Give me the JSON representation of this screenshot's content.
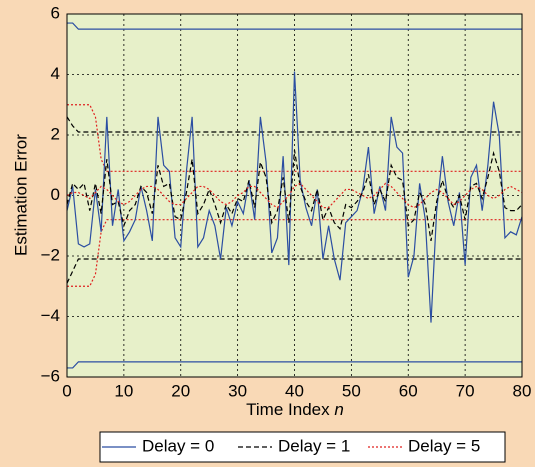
{
  "chart_data": {
    "type": "line",
    "xlabel": "Time Index",
    "xlabel_var": "n",
    "ylabel": "Estimation Error",
    "xlim": [
      0,
      80
    ],
    "ylim": [
      -6,
      6
    ],
    "xticks": [
      0,
      10,
      20,
      30,
      40,
      50,
      60,
      70,
      80
    ],
    "yticks": [
      {
        "value": -6,
        "label": "−6"
      },
      {
        "value": -4,
        "label": "−4"
      },
      {
        "value": -2,
        "label": "−2"
      },
      0,
      2,
      4,
      6
    ],
    "grid": true,
    "legend": "bottom",
    "x": [
      0,
      1,
      2,
      3,
      4,
      5,
      6,
      7,
      8,
      9,
      10,
      11,
      12,
      13,
      14,
      15,
      16,
      17,
      18,
      19,
      20,
      21,
      22,
      23,
      24,
      25,
      26,
      27,
      28,
      29,
      30,
      31,
      32,
      33,
      34,
      35,
      36,
      37,
      38,
      39,
      40,
      41,
      42,
      43,
      44,
      45,
      46,
      47,
      48,
      49,
      50,
      51,
      52,
      53,
      54,
      55,
      56,
      57,
      58,
      59,
      60,
      61,
      62,
      63,
      64,
      65,
      66,
      67,
      68,
      69,
      70,
      71,
      72,
      73,
      74,
      75,
      76,
      77,
      78,
      79,
      80
    ],
    "series": [
      {
        "name": "Delay = 0",
        "color": "#2b4ea2",
        "dash": "none",
        "values": [
          -0.5,
          0.3,
          -1.6,
          -1.7,
          -1.6,
          0.2,
          -1.2,
          2.6,
          -1.0,
          0.2,
          -1.5,
          -1.2,
          -0.8,
          0.3,
          -0.5,
          -1.5,
          2.6,
          1.0,
          0.8,
          -1.4,
          -1.7,
          0.8,
          2.6,
          -1.7,
          -1.4,
          -0.5,
          -1.0,
          -2.1,
          -0.4,
          -1.0,
          -0.2,
          -0.6,
          0.5,
          -0.8,
          2.6,
          1.1,
          -1.9,
          -1.4,
          1.3,
          -2.3,
          4.1,
          0.5,
          -0.4,
          -1.0,
          0.2,
          -2.1,
          -1.0,
          -2.1,
          -2.8,
          -0.9,
          -0.7,
          -0.5,
          0.2,
          1.6,
          -0.6,
          0.3,
          -0.5,
          2.6,
          1.6,
          1.4,
          -2.7,
          -2.0,
          0.4,
          -0.8,
          -4.2,
          -0.5,
          1.3,
          -0.2,
          -1.0,
          0.1,
          -2.3,
          0.6,
          1.0,
          -0.5,
          1.0,
          3.1,
          2.0,
          -1.4,
          -1.2,
          -1.3,
          -0.7
        ],
        "bound_x": [
          0,
          1,
          2,
          80
        ],
        "upper": [
          5.7,
          5.7,
          5.5,
          5.5
        ],
        "lower": [
          -5.7,
          -5.7,
          -5.5,
          -5.5
        ]
      },
      {
        "name": "Delay = 1",
        "color": "#000000",
        "dash": "5 3",
        "values": [
          -0.3,
          0.4,
          0.2,
          0.4,
          -0.5,
          0.4,
          -0.6,
          1.2,
          -0.3,
          -0.2,
          -1.0,
          -0.5,
          -0.3,
          0.3,
          0.1,
          -0.6,
          1.0,
          0.3,
          0.4,
          -0.7,
          -0.8,
          0.1,
          1.2,
          -0.6,
          -0.3,
          0.2,
          -0.3,
          -0.9,
          -0.3,
          -0.6,
          -0.1,
          -0.2,
          0.5,
          -0.4,
          1.1,
          0.6,
          -0.9,
          -0.5,
          0.6,
          -0.9,
          1.5,
          0.3,
          -0.2,
          -0.5,
          0.2,
          -0.8,
          -0.4,
          -0.9,
          -1.1,
          -0.3,
          -0.4,
          -0.2,
          0.1,
          0.7,
          -0.3,
          0.2,
          -0.2,
          1.0,
          0.6,
          0.5,
          -1.0,
          -0.8,
          0.1,
          -0.3,
          -1.5,
          -0.2,
          0.5,
          -0.1,
          -0.4,
          0,
          -0.8,
          0.3,
          0.4,
          -0.1,
          0.6,
          1.4,
          0.8,
          -0.4,
          -0.5,
          -0.5,
          -0.3
        ],
        "bound_x": [
          0,
          1,
          2,
          80
        ],
        "upper": [
          2.6,
          2.3,
          2.1,
          2.1
        ],
        "lower": [
          -2.9,
          -2.5,
          -2.1,
          -2.1
        ]
      },
      {
        "name": "Delay = 5",
        "color": "#e0211f",
        "dash": "2 2",
        "values": [
          0,
          0.1,
          0.1,
          0,
          -0.1,
          0.1,
          0.3,
          0.2,
          0,
          -0.2,
          -0.3,
          -0.2,
          0,
          0.2,
          0.3,
          0.3,
          0.2,
          0,
          -0.2,
          -0.3,
          -0.3,
          -0.1,
          0.1,
          0.3,
          0.3,
          0.2,
          0,
          -0.2,
          -0.3,
          -0.2,
          0,
          0.1,
          0.3,
          0.3,
          0.1,
          -0.1,
          -0.3,
          -0.4,
          -0.2,
          0,
          0.3,
          0.4,
          0.2,
          0,
          -0.2,
          -0.4,
          -0.4,
          -0.2,
          0,
          0.2,
          0.2,
          0.1,
          0,
          -0.1,
          0,
          0.2,
          0.4,
          0.3,
          0.1,
          -0.1,
          -0.3,
          -0.4,
          -0.3,
          -0.1,
          0.1,
          0.2,
          0.1,
          -0.1,
          -0.3,
          -0.2,
          0,
          0.2,
          0.3,
          0.2,
          0,
          -0.1,
          0,
          0.2,
          0.3,
          0.2,
          0.1
        ],
        "bound_x": [
          0,
          4,
          5,
          6,
          7,
          80
        ],
        "upper": [
          3,
          3,
          2.6,
          1.2,
          0.8,
          0.8
        ],
        "lower": [
          -3,
          -3,
          -2.6,
          -1.2,
          -0.8,
          -0.8
        ]
      }
    ]
  }
}
